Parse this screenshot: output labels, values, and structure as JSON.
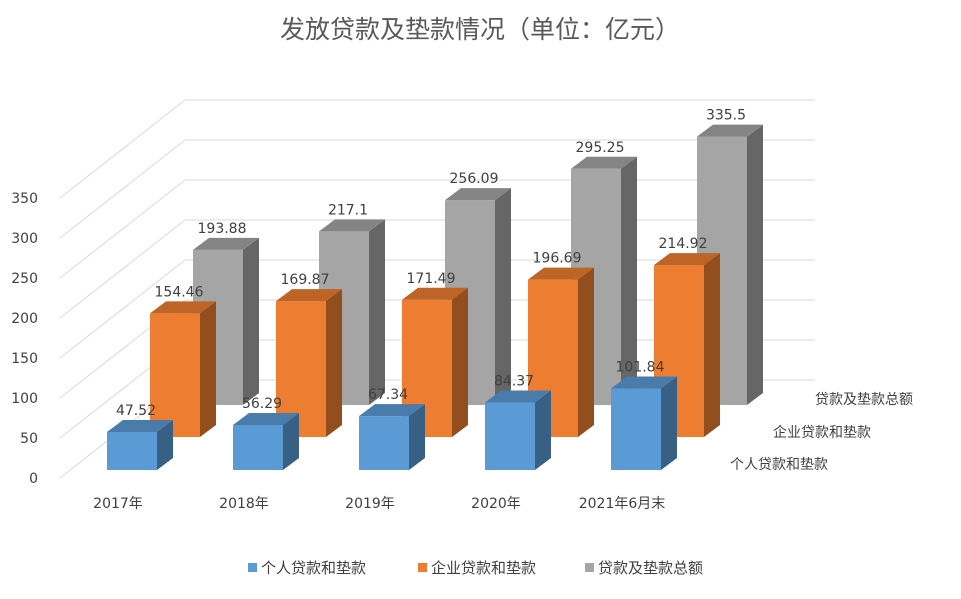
{
  "chart_data": {
    "type": "bar",
    "title": "发放贷款及垫款情况（单位：亿元）",
    "categories": [
      "2017年",
      "2018年",
      "2019年",
      "2020年",
      "2021年6月末"
    ],
    "ylim": [
      0,
      350
    ],
    "yticks": [
      "0",
      "50",
      "100",
      "150",
      "200",
      "250",
      "300",
      "350"
    ],
    "grid": true,
    "legend_position": "bottom",
    "series": [
      {
        "name": "个人贷款和垫款",
        "color": "#5B9BD5",
        "values": [
          47.52,
          56.29,
          67.34,
          84.37,
          101.84
        ],
        "labels": [
          "47.52",
          "56.29",
          "67.34",
          "84.37",
          "101.84"
        ]
      },
      {
        "name": "企业贷款和垫款",
        "color": "#ED7D31",
        "values": [
          154.46,
          169.87,
          171.49,
          196.69,
          214.92
        ],
        "labels": [
          "154.46",
          "169.87",
          "171.49",
          "196.69",
          "214.92"
        ]
      },
      {
        "name": "贷款及垫款总额",
        "color": "#A5A5A5",
        "values": [
          193.88,
          217.1,
          256.09,
          295.25,
          335.5
        ],
        "labels": [
          "193.88",
          "217.1",
          "256.09",
          "295.25",
          "335.5"
        ]
      }
    ]
  }
}
